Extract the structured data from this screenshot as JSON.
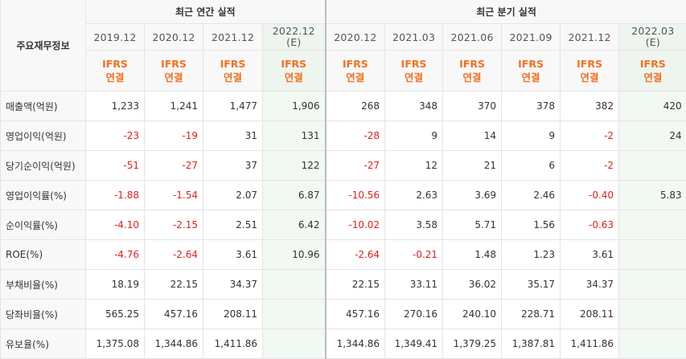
{
  "header": {
    "row_label": "주요재무정보",
    "annual_title": "최근 연간 실적",
    "quarterly_title": "최근 분기 실적",
    "annual_periods": [
      "2019.12",
      "2020.12",
      "2021.12"
    ],
    "annual_estimate": {
      "period": "2022.12",
      "tag": "(E)"
    },
    "quarterly_periods": [
      "2020.12",
      "2021.03",
      "2021.06",
      "2021.09",
      "2021.12"
    ],
    "quarterly_estimate": {
      "period": "2022.03",
      "tag": "(E)"
    },
    "ifrs_top": "IFRS",
    "ifrs_bottom": "연결"
  },
  "rows": [
    {
      "label": "매출액(억원)",
      "annual": [
        "1,233",
        "1,241",
        "1,477",
        "1,906"
      ],
      "quarterly": [
        "268",
        "348",
        "370",
        "378",
        "382",
        "420"
      ]
    },
    {
      "label": "영업이익(억원)",
      "annual": [
        "-23",
        "-19",
        "31",
        "131"
      ],
      "quarterly": [
        "-28",
        "9",
        "14",
        "9",
        "-2",
        "24"
      ]
    },
    {
      "label": "당기순이익(억원)",
      "annual": [
        "-51",
        "-27",
        "37",
        "122"
      ],
      "quarterly": [
        "-27",
        "12",
        "21",
        "6",
        "-2",
        ""
      ]
    },
    {
      "label": "영업이익률(%)",
      "annual": [
        "-1.88",
        "-1.54",
        "2.07",
        "6.87"
      ],
      "quarterly": [
        "-10.56",
        "2.63",
        "3.69",
        "2.46",
        "-0.40",
        "5.83"
      ]
    },
    {
      "label": "순이익률(%)",
      "annual": [
        "-4.10",
        "-2.15",
        "2.51",
        "6.42"
      ],
      "quarterly": [
        "-10.02",
        "3.58",
        "5.71",
        "1.56",
        "-0.63",
        ""
      ]
    },
    {
      "label": "ROE(%)",
      "annual": [
        "-4.76",
        "-2.64",
        "3.61",
        "10.96"
      ],
      "quarterly": [
        "-2.64",
        "-0.21",
        "1.48",
        "1.23",
        "3.61",
        ""
      ]
    },
    {
      "label": "부채비율(%)",
      "annual": [
        "18.19",
        "22.15",
        "34.37",
        ""
      ],
      "quarterly": [
        "22.15",
        "33.11",
        "36.02",
        "35.17",
        "34.37",
        ""
      ]
    },
    {
      "label": "당좌비율(%)",
      "annual": [
        "565.25",
        "457.16",
        "208.11",
        ""
      ],
      "quarterly": [
        "457.16",
        "270.16",
        "240.10",
        "228.71",
        "208.11",
        ""
      ]
    },
    {
      "label": "유보율(%)",
      "annual": [
        "1,375.08",
        "1,344.86",
        "1,411.86",
        ""
      ],
      "quarterly": [
        "1,344.86",
        "1,349.41",
        "1,379.25",
        "1,387.81",
        "1,411.86",
        ""
      ]
    }
  ],
  "colors": {
    "negative": "#e02020",
    "ifrs": "#f37021",
    "estimate_bg": "#eef5ee"
  }
}
